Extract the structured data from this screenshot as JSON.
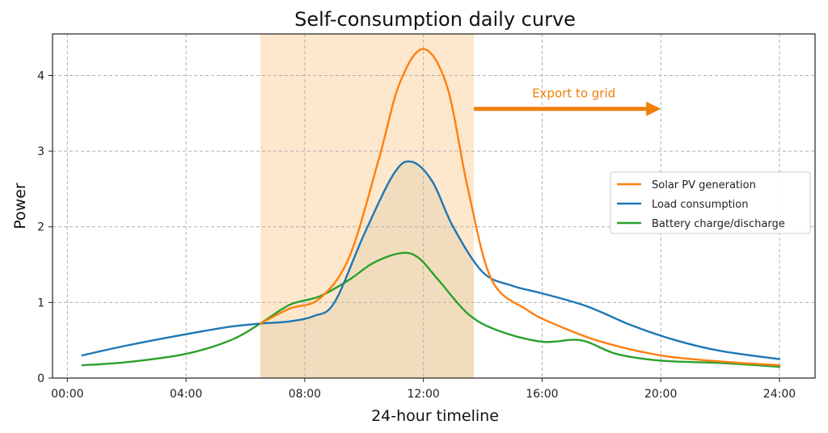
{
  "chart_data": {
    "type": "line",
    "title": "Self-consumption daily curve",
    "xlabel": "24-hour timeline",
    "ylabel": "Power",
    "xlim": [
      -0.5,
      25.2
    ],
    "ylim": [
      0,
      4.55
    ],
    "x_ticks": [
      0,
      4,
      8,
      12,
      16,
      20,
      24
    ],
    "x_tick_labels": [
      "00:00",
      "04:00",
      "08:00",
      "12:00",
      "16:00",
      "20:00",
      "24:00"
    ],
    "y_ticks": [
      0,
      1,
      2,
      3,
      4
    ],
    "y_tick_labels": [
      "0",
      "1",
      "2",
      "3",
      "4"
    ],
    "grid": true,
    "legend_position": "center-right",
    "highlight_band": {
      "x_start": 6.5,
      "x_end": 13.7,
      "color": "#fde3c4"
    },
    "annotation": {
      "text": "Export to grid",
      "color": "#f07f0a",
      "arrow_from": [
        13.7,
        3.56
      ],
      "arrow_to": [
        20.0,
        3.56
      ]
    },
    "series": [
      {
        "name": "Solar PV generation",
        "color": "#ff7f0e",
        "x": [
          6.5,
          7.5,
          8.5,
          9.5,
          10.5,
          11.2,
          12.0,
          12.8,
          13.5,
          14.3,
          15.5,
          16.5,
          18.0,
          20.0,
          22.0,
          24.0
        ],
        "y": [
          0.72,
          0.92,
          1.05,
          1.6,
          2.9,
          3.9,
          4.35,
          3.85,
          2.5,
          1.3,
          0.9,
          0.7,
          0.48,
          0.3,
          0.22,
          0.17
        ]
      },
      {
        "name": "Load consumption",
        "color": "#1f77b4",
        "x": [
          0.5,
          2.0,
          4.0,
          5.5,
          6.5,
          7.5,
          8.3,
          9.0,
          10.0,
          11.0,
          11.6,
          12.3,
          13.0,
          14.0,
          15.0,
          16.0,
          17.5,
          19.0,
          20.5,
          22.0,
          24.0
        ],
        "y": [
          0.3,
          0.43,
          0.58,
          0.68,
          0.72,
          0.75,
          0.82,
          1.0,
          1.9,
          2.7,
          2.86,
          2.6,
          2.0,
          1.4,
          1.22,
          1.12,
          0.95,
          0.7,
          0.5,
          0.36,
          0.25
        ]
      },
      {
        "name": "Battery charge/discharge",
        "color": "#2ca02c",
        "x": [
          0.5,
          2.0,
          4.0,
          5.5,
          6.5,
          7.5,
          8.5,
          9.5,
          10.3,
          11.2,
          11.8,
          12.5,
          13.5,
          14.5,
          16.0,
          17.3,
          18.5,
          20.0,
          22.0,
          24.0
        ],
        "y": [
          0.17,
          0.21,
          0.32,
          0.5,
          0.72,
          0.97,
          1.08,
          1.3,
          1.52,
          1.65,
          1.6,
          1.3,
          0.85,
          0.63,
          0.48,
          0.5,
          0.32,
          0.23,
          0.2,
          0.15
        ]
      }
    ]
  }
}
